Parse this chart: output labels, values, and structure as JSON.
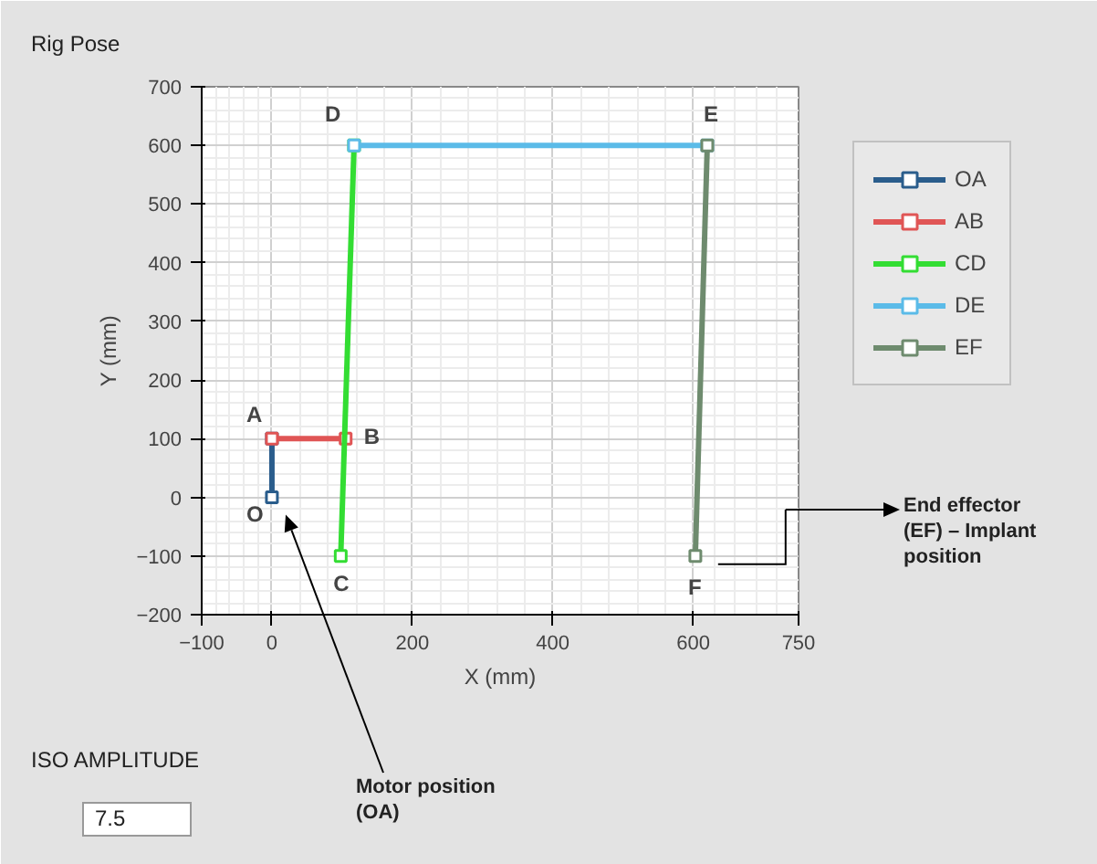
{
  "chart_data": {
    "type": "line",
    "title": "Rig Pose",
    "xlabel": "X (mm)",
    "ylabel": "Y (mm)",
    "xlim": [
      -100,
      750
    ],
    "ylim": [
      -200,
      700
    ],
    "xticks": [
      -100,
      0,
      200,
      400,
      600,
      750
    ],
    "yticks": [
      -200,
      -100,
      0,
      100,
      200,
      300,
      400,
      500,
      600,
      700
    ],
    "grid": true,
    "legend": "top right",
    "marker": "square",
    "line_style": "solid",
    "series": [
      {
        "name": "OA",
        "color": "#2a5d8c",
        "x": [
          0,
          0
        ],
        "values": [
          0,
          100
        ]
      },
      {
        "name": "AB",
        "color": "#e05555",
        "x": [
          0,
          105
        ],
        "values": [
          100,
          100
        ]
      },
      {
        "name": "CD",
        "color": "#33dd33",
        "x": [
          98,
          117
        ],
        "values": [
          -100,
          600
        ]
      },
      {
        "name": "DE",
        "color": "#5bbbe8",
        "x": [
          117,
          620
        ],
        "values": [
          600,
          600
        ]
      },
      {
        "name": "EF",
        "color": "#6e8b6e",
        "x": [
          620,
          603
        ],
        "values": [
          600,
          -100
        ]
      }
    ],
    "annotations": [
      {
        "text": "O",
        "x": 0,
        "y": 0
      },
      {
        "text": "A",
        "x": 0,
        "y": 100
      },
      {
        "text": "B",
        "x": 105,
        "y": 100
      },
      {
        "text": "C",
        "x": 98,
        "y": -100
      },
      {
        "text": "D",
        "x": 117,
        "y": 600
      },
      {
        "text": "E",
        "x": 620,
        "y": 600
      },
      {
        "text": "F",
        "x": 603,
        "y": -100
      },
      "Motor position\n(OA)",
      "End effector\n(EF) – Implant\nposition",
      "ISO AMPLITUDE",
      "7.5"
    ]
  }
}
